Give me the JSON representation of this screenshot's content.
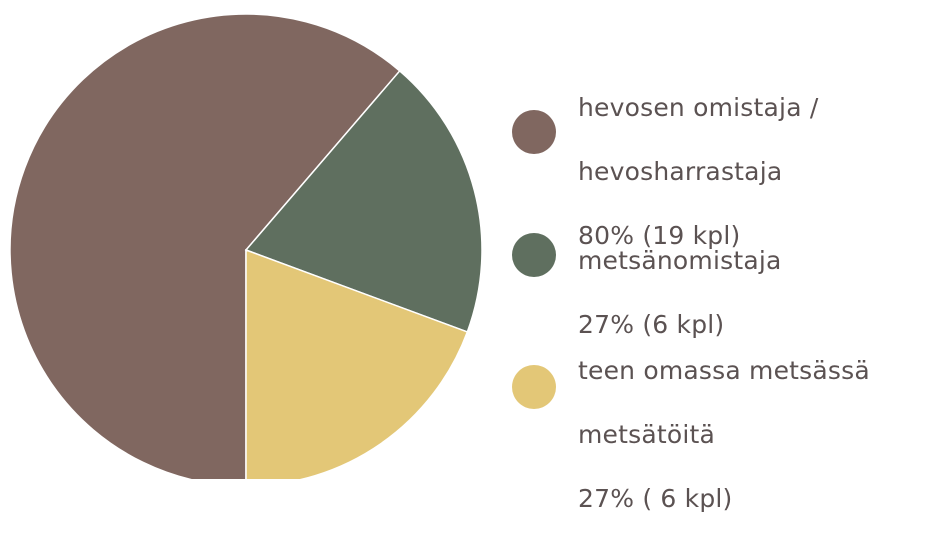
{
  "chart_data": {
    "type": "pie",
    "slices": [
      {
        "label": "hevosen omistaja / hevosharrastaja",
        "percent_label": "80% (19 kpl)",
        "value": 19,
        "color": "#806760"
      },
      {
        "label": "metsänomistaja",
        "percent_label": "27% (6 kpl)",
        "value": 6,
        "color": "#5f6f5f"
      },
      {
        "label": "teen omassa metsässä metsätöitä",
        "percent_label": "27% ( 6 kpl)",
        "value": 6,
        "color": "#e3c777"
      }
    ],
    "legend_placement": "right"
  },
  "legend": {
    "items": [
      {
        "lines": [
          "hevosen omistaja /",
          "hevosharrastaja",
          "80% (19 kpl)"
        ],
        "color": "#806760"
      },
      {
        "lines": [
          "metsänomistaja",
          "27% (6 kpl)"
        ],
        "color": "#5f6f5f"
      },
      {
        "lines": [
          "teen omassa metsässä",
          "metsätöitä",
          "27% ( 6 kpl)"
        ],
        "color": "#e3c777"
      }
    ]
  }
}
